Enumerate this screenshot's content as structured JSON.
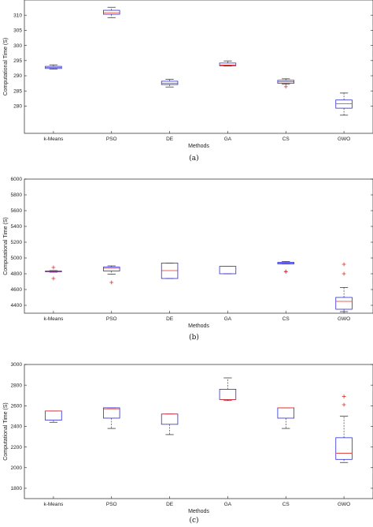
{
  "chart_data": [
    {
      "type": "boxplot",
      "caption": "(a)",
      "xlabel": "Methods",
      "ylabel": "Computational Time (S)",
      "ylim": [
        271,
        315
      ],
      "yticks": [
        280,
        285,
        290,
        295,
        300,
        305,
        310
      ],
      "categories": [
        "k-Means",
        "PSO",
        "DE",
        "GA",
        "CS",
        "GWO"
      ],
      "series": [
        {
          "category": "k-Means",
          "whisker_low": 292.2,
          "q1": 292.4,
          "median": 292.7,
          "q3": 293.1,
          "whisker_high": 293.6,
          "outliers": []
        },
        {
          "category": "PSO",
          "whisker_low": 309.2,
          "q1": 310.3,
          "median": 310.8,
          "q3": 311.6,
          "whisker_high": 312.6,
          "outliers": []
        },
        {
          "category": "DE",
          "whisker_low": 286.3,
          "q1": 287.1,
          "median": 287.5,
          "q3": 288.2,
          "whisker_high": 288.8,
          "outliers": []
        },
        {
          "category": "GA",
          "whisker_low": 293.2,
          "q1": 293.3,
          "median": 293.5,
          "q3": 294.2,
          "whisker_high": 294.9,
          "outliers": []
        },
        {
          "category": "CS",
          "whisker_low": 287.2,
          "q1": 287.5,
          "median": 288.0,
          "q3": 288.5,
          "whisker_high": 289.0,
          "outliers": [
            286.4
          ]
        },
        {
          "category": "GWO",
          "whisker_low": 277.0,
          "q1": 279.3,
          "median": 280.8,
          "q3": 282.0,
          "whisker_high": 284.3,
          "outliers": []
        }
      ]
    },
    {
      "type": "boxplot",
      "caption": "(b)",
      "xlabel": "Methods",
      "ylabel": "Computational Time (S)",
      "ylim": [
        4300,
        6000
      ],
      "yticks": [
        4400,
        4600,
        4800,
        5000,
        5200,
        5400,
        5600,
        5800,
        6000
      ],
      "categories": [
        "k-Means",
        "PSO",
        "DE",
        "GA",
        "CS",
        "GWO"
      ],
      "series": [
        {
          "category": "k-Means",
          "whisker_low": 4820,
          "q1": 4825,
          "median": 4830,
          "q3": 4835,
          "whisker_high": 4840,
          "outliers": [
            4880,
            4740
          ]
        },
        {
          "category": "PSO",
          "whisker_low": 4795,
          "q1": 4835,
          "median": 4870,
          "q3": 4885,
          "whisker_high": 4900,
          "outliers": [
            4690
          ]
        },
        {
          "category": "DE",
          "whisker_low": 4740,
          "q1": 4740,
          "median": 4840,
          "q3": 4935,
          "whisker_high": 4935,
          "outliers": []
        },
        {
          "category": "GA",
          "whisker_low": 4800,
          "q1": 4800,
          "median": 4895,
          "q3": 4895,
          "whisker_high": 4895,
          "outliers": []
        },
        {
          "category": "CS",
          "whisker_low": 4925,
          "q1": 4925,
          "median": 4935,
          "q3": 4945,
          "whisker_high": 4955,
          "outliers": [
            4830,
            4825
          ]
        },
        {
          "category": "GWO",
          "whisker_low": 4320,
          "q1": 4350,
          "median": 4450,
          "q3": 4500,
          "whisker_high": 4625,
          "outliers": [
            4920,
            4800
          ]
        }
      ]
    },
    {
      "type": "boxplot",
      "caption": "(c)",
      "xlabel": "Methods",
      "ylabel": "Computational Time (S)",
      "ylim": [
        1700,
        3000
      ],
      "yticks": [
        1800,
        2000,
        2200,
        2400,
        2600,
        2800,
        3000
      ],
      "categories": [
        "k-Means",
        "PSO",
        "DE",
        "GA",
        "CS",
        "GWO"
      ],
      "series": [
        {
          "category": "k-Means",
          "whisker_low": 2440,
          "q1": 2460,
          "median": 2550,
          "q3": 2550,
          "whisker_high": 2550,
          "outliers": []
        },
        {
          "category": "PSO",
          "whisker_low": 2380,
          "q1": 2480,
          "median": 2570,
          "q3": 2580,
          "whisker_high": 2580,
          "outliers": []
        },
        {
          "category": "DE",
          "whisker_low": 2320,
          "q1": 2420,
          "median": 2520,
          "q3": 2520,
          "whisker_high": 2520,
          "outliers": []
        },
        {
          "category": "GA",
          "whisker_low": 2650,
          "q1": 2660,
          "median": 2660,
          "q3": 2760,
          "whisker_high": 2870,
          "outliers": []
        },
        {
          "category": "CS",
          "whisker_low": 2380,
          "q1": 2480,
          "median": 2580,
          "q3": 2580,
          "whisker_high": 2580,
          "outliers": []
        },
        {
          "category": "GWO",
          "whisker_low": 2050,
          "q1": 2080,
          "median": 2140,
          "q3": 2290,
          "whisker_high": 2500,
          "outliers": [
            2690,
            2610
          ]
        }
      ]
    }
  ]
}
